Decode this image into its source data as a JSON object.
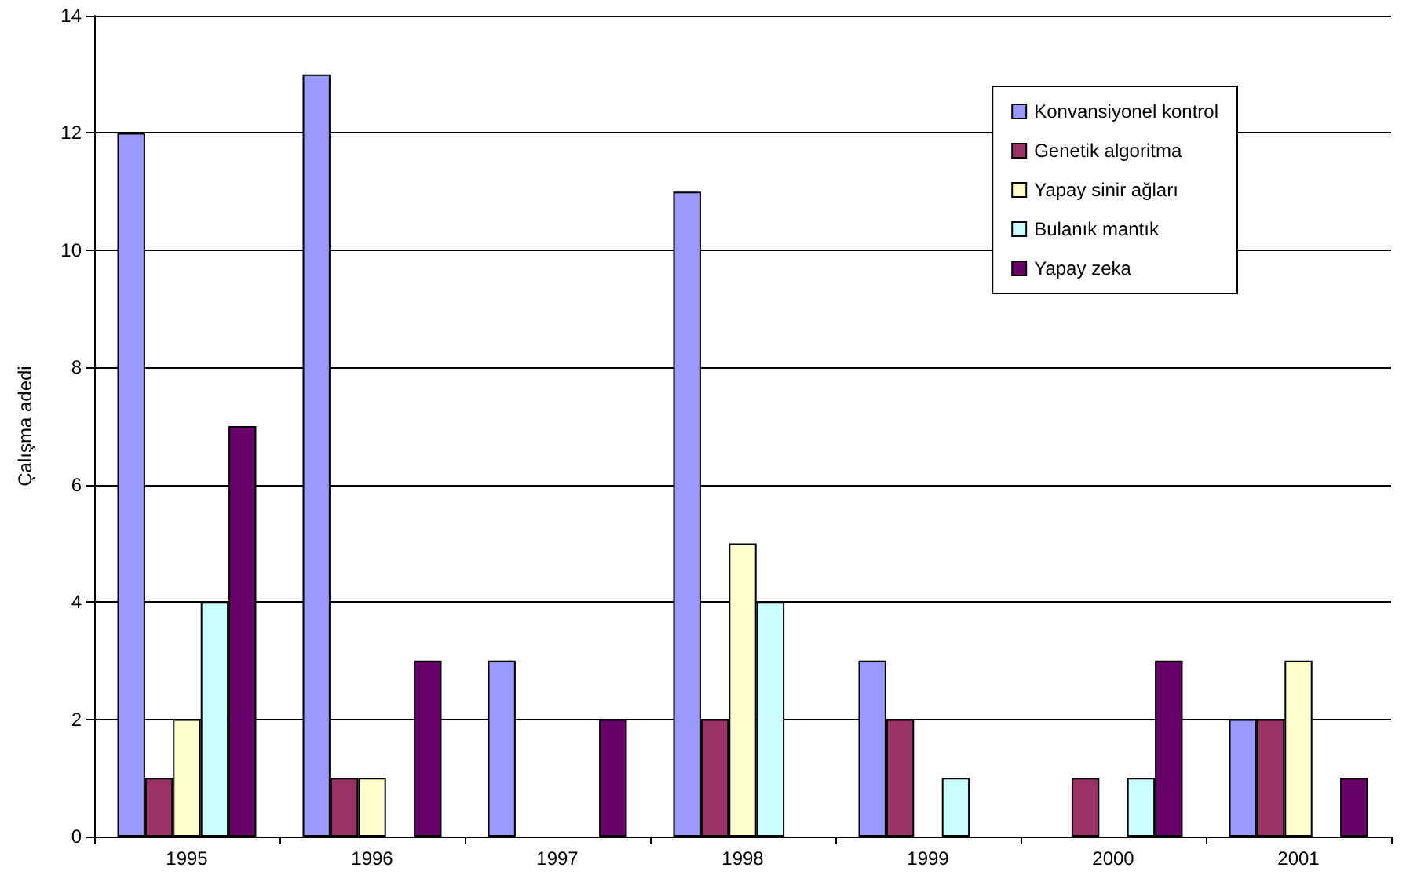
{
  "chart_data": {
    "type": "bar",
    "ylabel": "Çalışma adedi",
    "categories": [
      "1995",
      "1996",
      "1997",
      "1998",
      "1999",
      "2000",
      "2001"
    ],
    "series": [
      {
        "name": "Konvansiyonel kontrol",
        "color": "#9999ff",
        "values": [
          12,
          13,
          3,
          11,
          3,
          0,
          2
        ]
      },
      {
        "name": "Genetik algoritma",
        "color": "#993366",
        "values": [
          1,
          1,
          0,
          2,
          2,
          1,
          2
        ]
      },
      {
        "name": "Yapay sinir ağları",
        "color": "#ffffcc",
        "values": [
          2,
          1,
          0,
          5,
          0,
          0,
          3
        ]
      },
      {
        "name": "Bulanık mantık",
        "color": "#ccffff",
        "values": [
          4,
          0,
          0,
          4,
          1,
          1,
          0
        ]
      },
      {
        "name": "Yapay zeka",
        "color": "#660066",
        "values": [
          7,
          3,
          2,
          0,
          0,
          3,
          1
        ]
      }
    ],
    "ylim": [
      0,
      14
    ],
    "yticks": [
      0,
      2,
      4,
      6,
      8,
      10,
      12,
      14
    ],
    "grid": "y",
    "legend": "top right"
  }
}
